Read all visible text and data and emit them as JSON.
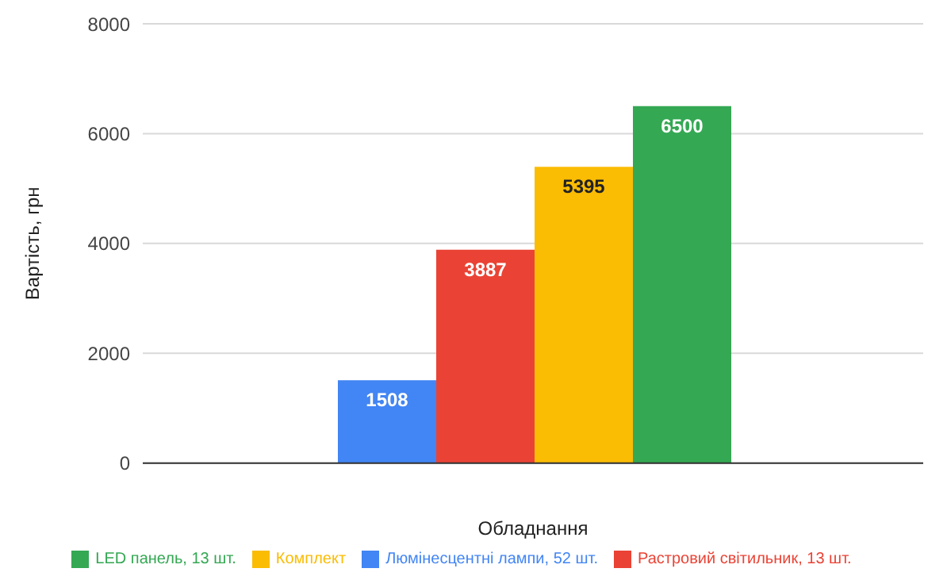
{
  "chart_data": {
    "type": "bar",
    "xlabel": "Обладнання",
    "ylabel": "Вартість, грн",
    "categories": [
      null
    ],
    "series": [
      {
        "name": "Люмінесцентні лампи, 52 шт.",
        "color": "#4285f4",
        "values": [
          1508
        ]
      },
      {
        "name": "Растровий світильник, 13 шт.",
        "color": "#ea4335",
        "values": [
          3887
        ]
      },
      {
        "name": "Комплект",
        "color": "#fbbc04",
        "values": [
          5395
        ]
      },
      {
        "name": "LED панель, 13 шт.",
        "color": "#34a853",
        "values": [
          6500
        ]
      }
    ],
    "ylim": [
      0,
      8000
    ],
    "yticks": [
      0,
      2000,
      4000,
      6000,
      8000
    ],
    "grid": "y",
    "legend": "bottom",
    "data_labels": true
  }
}
